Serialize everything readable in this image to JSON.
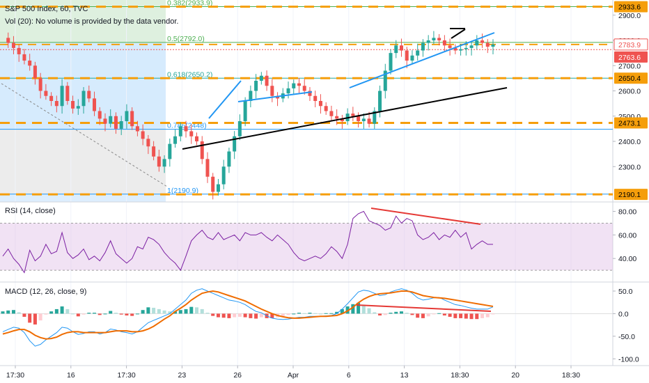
{
  "header": {
    "title": "S&P 500 Index, 60, TVC",
    "volume_note": "Vol (20): No volume is provided by the data vendor."
  },
  "colors": {
    "up": "#26a69a",
    "down": "#ef5350",
    "level": "#f59e0b",
    "trend_blue": "#2196f3",
    "trend_black": "#000000",
    "divergence": "#e53935",
    "rsi_line": "#7b1fa2",
    "macd_line": "#2196f3",
    "signal_line": "#ef6c00"
  },
  "x_axis": {
    "labels": [
      "17:30",
      "16",
      "17:30",
      "23",
      "26",
      "Apr",
      "6",
      "13",
      "18:30",
      "20",
      "18:30"
    ]
  },
  "chart_data": [
    {
      "type": "candlestick",
      "name": "price",
      "ylim": [
        2160,
        2960
      ],
      "y_ticks": [
        2300.0,
        2400.0,
        2500.0,
        2600.0,
        2700.0,
        2800.0,
        2900.0
      ],
      "tick_labels": [
        "2300.0",
        "2400.0",
        "2500.0",
        "2600.0",
        "2700.0",
        "2800.0",
        "2900.0"
      ],
      "horizontal_levels": [
        2933.6,
        2783.9,
        2650.4,
        2473.1,
        2190.1
      ],
      "price_badges": [
        {
          "text": "2933.6",
          "value": 2933.6,
          "style": "level"
        },
        {
          "text": "2783.9",
          "value": 2783.9,
          "style": "last"
        },
        {
          "text": "2763.6",
          "value": 2763.6,
          "style": "prev"
        },
        {
          "text": "2650.4",
          "value": 2650.4,
          "style": "level"
        },
        {
          "text": "2473.1",
          "value": 2473.1,
          "style": "level"
        },
        {
          "text": "2190.1",
          "value": 2190.1,
          "style": "level"
        }
      ],
      "fibonacci": [
        {
          "text": "0.382(2933.9)",
          "value": 2933.9
        },
        {
          "text": "0.5(2792.0)",
          "value": 2792.0
        },
        {
          "text": "0.618(2650.2)",
          "value": 2650.2
        },
        {
          "text": "0.786(2448)",
          "value": 2448
        },
        {
          "text": "1(2190.9)",
          "value": 2190.9
        }
      ],
      "close_path": [
        2810,
        2790,
        2770,
        2745,
        2720,
        2700,
        2650,
        2600,
        2580,
        2560,
        2540,
        2620,
        2560,
        2530,
        2540,
        2600,
        2570,
        2520,
        2490,
        2470,
        2500,
        2450,
        2480,
        2520,
        2460,
        2440,
        2410,
        2380,
        2340,
        2300,
        2330,
        2390,
        2420,
        2460,
        2440,
        2420,
        2400,
        2330,
        2260,
        2200,
        2230,
        2300,
        2360,
        2420,
        2480,
        2560,
        2600,
        2640,
        2660,
        2620,
        2580,
        2570,
        2590,
        2610,
        2630,
        2620,
        2600,
        2580,
        2560,
        2540,
        2520,
        2500,
        2490,
        2480,
        2510,
        2500,
        2480,
        2490,
        2470,
        2520,
        2600,
        2680,
        2750,
        2780,
        2760,
        2720,
        2740,
        2760,
        2790,
        2800,
        2810,
        2800,
        2780,
        2770,
        2760,
        2765,
        2770,
        2780,
        2800,
        2790,
        2775,
        2783.9
      ]
    },
    {
      "type": "line",
      "name": "rsi",
      "label": "RSI (14, close)",
      "ylim": [
        20,
        88
      ],
      "y_ticks": [
        40.0,
        60.0,
        80.0
      ],
      "tick_labels": [
        "40.00",
        "60.00",
        "80.00"
      ],
      "band": [
        30,
        70
      ],
      "values": [
        42,
        48,
        40,
        35,
        28,
        47,
        38,
        42,
        52,
        44,
        46,
        62,
        45,
        40,
        43,
        48,
        39,
        42,
        38,
        45,
        55,
        44,
        40,
        36,
        40,
        50,
        48,
        58,
        56,
        52,
        45,
        40,
        36,
        30,
        42,
        55,
        60,
        64,
        58,
        56,
        62,
        56,
        58,
        60,
        55,
        62,
        60,
        60,
        62,
        58,
        55,
        60,
        56,
        52,
        45,
        40,
        38,
        40,
        42,
        40,
        44,
        50,
        46,
        40,
        52,
        74,
        78,
        80,
        72,
        70,
        68,
        64,
        66,
        76,
        70,
        74,
        72,
        60,
        56,
        58,
        62,
        56,
        60,
        58,
        64,
        58,
        62,
        48,
        52,
        55,
        52,
        52
      ]
    },
    {
      "type": "line",
      "name": "macd",
      "label": "MACD (12, 26, close, 9)",
      "ylim": [
        -115,
        70
      ],
      "y_ticks": [
        -100.0,
        -50.0,
        0.0,
        50.0
      ],
      "tick_labels": [
        "-100.0",
        "-50.0",
        "0.0",
        "50.0"
      ],
      "macd_values": [
        -40,
        -35,
        -30,
        -32,
        -42,
        -60,
        -72,
        -68,
        -58,
        -50,
        -42,
        -30,
        -32,
        -40,
        -46,
        -44,
        -40,
        -40,
        -45,
        -42,
        -34,
        -36,
        -40,
        -42,
        -45,
        -40,
        -30,
        -20,
        -15,
        -10,
        -5,
        0,
        10,
        20,
        30,
        45,
        52,
        55,
        50,
        45,
        40,
        35,
        30,
        28,
        25,
        20,
        12,
        5,
        2,
        -5,
        -10,
        -12,
        -13,
        -12,
        -10,
        -8,
        -8,
        -6,
        -6,
        -6,
        -5,
        -4,
        0,
        10,
        22,
        35,
        48,
        52,
        50,
        45,
        40,
        42,
        48,
        52,
        55,
        52,
        45,
        35,
        30,
        32,
        35,
        36,
        30,
        25,
        20,
        18,
        15,
        12,
        10,
        10,
        10,
        15
      ]
    },
    {
      "type": "line",
      "name": "signal",
      "values": [
        -45,
        -42,
        -38,
        -35,
        -35,
        -40,
        -48,
        -53,
        -56,
        -55,
        -52,
        -46,
        -42,
        -40,
        -40,
        -42,
        -42,
        -42,
        -42,
        -42,
        -40,
        -38,
        -38,
        -38,
        -40,
        -40,
        -38,
        -34,
        -28,
        -20,
        -12,
        -5,
        5,
        12,
        20,
        30,
        38,
        45,
        48,
        50,
        48,
        44,
        40,
        36,
        32,
        28,
        22,
        16,
        10,
        5,
        0,
        -4,
        -7,
        -9,
        -10,
        -10,
        -9,
        -8,
        -7,
        -6,
        -6,
        -5,
        -4,
        0,
        6,
        14,
        24,
        32,
        38,
        42,
        44,
        45,
        46,
        48,
        50,
        50,
        48,
        44,
        40,
        38,
        36,
        35,
        34,
        32,
        30,
        28,
        26,
        24,
        22,
        20,
        18,
        16
      ]
    }
  ]
}
